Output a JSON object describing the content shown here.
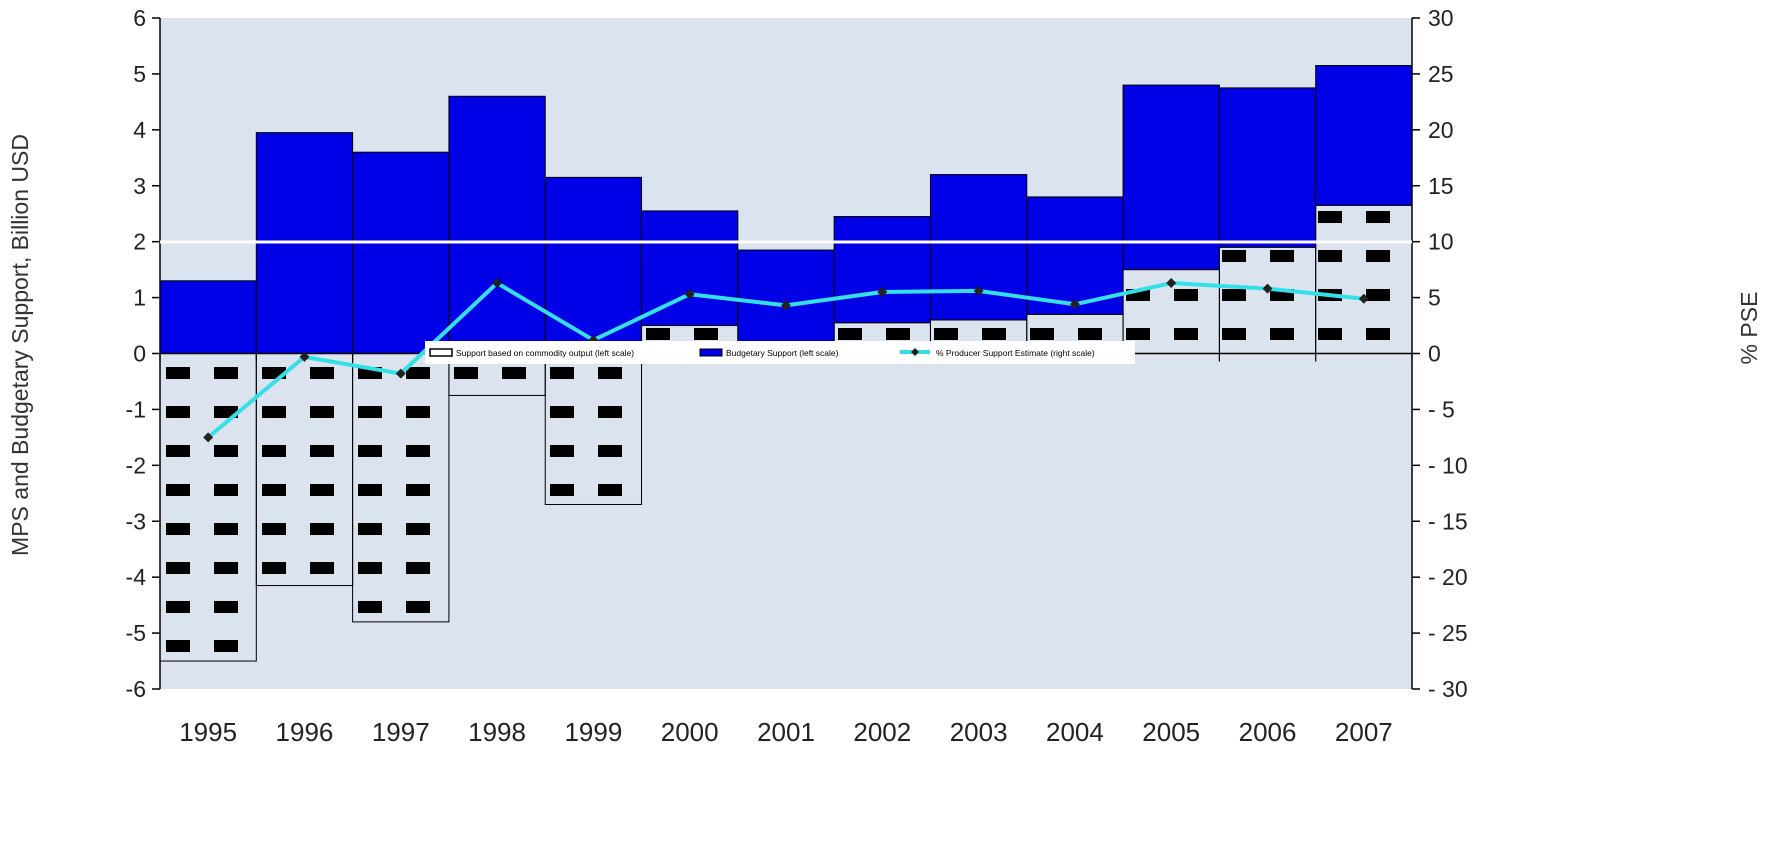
{
  "chart_data": {
    "type": "bar",
    "title": "",
    "ylabel": "MPS and Budgetary Support,  Billion USD",
    "y2label": "% PSE",
    "ylim": [
      -6,
      6
    ],
    "y2lim": [
      -30,
      30
    ],
    "yticks": [
      "6",
      "5",
      "4",
      "3",
      "2",
      "1",
      "0",
      "-1",
      "-2",
      "-3",
      "-4",
      "-5",
      "-6"
    ],
    "y2ticks": [
      "30",
      "25",
      "20",
      "15",
      "10",
      "5",
      "0",
      "- 5",
      "- 10",
      "- 15",
      "- 20",
      "- 25",
      "- 30"
    ],
    "categories": [
      "1995",
      "1996",
      "1997",
      "1998",
      "1999",
      "2000",
      "2001",
      "2002",
      "2003",
      "2004",
      "2005",
      "2006",
      "2007"
    ],
    "stacked": true,
    "grid": false,
    "legend_position": "center, just above the zero line",
    "series": [
      {
        "name": "Support based on commodity output (left scale)",
        "type": "bar",
        "axis": "left",
        "pattern": "black-dashes",
        "values": [
          -5.5,
          -4.15,
          -4.8,
          -0.75,
          -2.7,
          0.5,
          0.0,
          0.55,
          0.6,
          0.7,
          1.5,
          1.9,
          2.65
        ]
      },
      {
        "name": "Budgetary Support (left scale)",
        "type": "bar",
        "axis": "left",
        "color": "#0000e6",
        "values": [
          1.3,
          3.95,
          3.6,
          4.6,
          3.15,
          2.05,
          1.85,
          1.9,
          2.6,
          2.1,
          3.3,
          2.85,
          2.5
        ]
      },
      {
        "name": "% Producer Support Estimate (right scale)",
        "type": "line",
        "axis": "right",
        "color": "#33e0e8",
        "marker_color": "#222222",
        "values": [
          -7.5,
          -0.3,
          -1.8,
          6.3,
          1.2,
          5.3,
          4.3,
          5.5,
          5.6,
          4.4,
          6.3,
          5.8,
          4.9
        ]
      }
    ]
  }
}
